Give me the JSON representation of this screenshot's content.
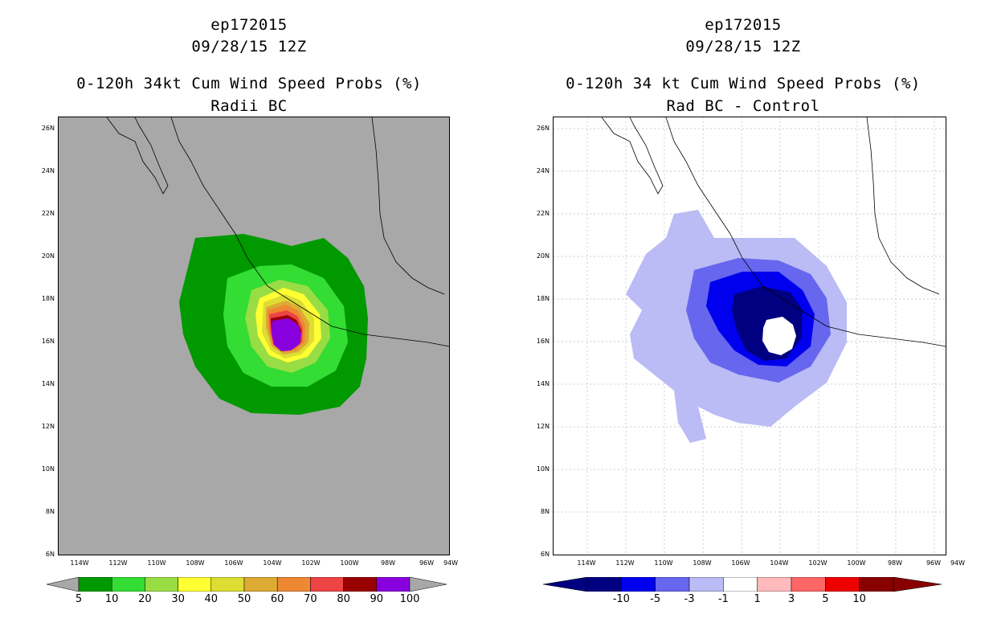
{
  "left_panel": {
    "title_storm": "ep172015",
    "title_date": "09/28/15 12Z",
    "title_product": "0-120h 34kt Cum Wind Speed Probs (%)",
    "title_sub": "Radii BC",
    "background_color": "#a8a8a8",
    "colorbar": {
      "colors": [
        "#009900",
        "#33dd33",
        "#99dd44",
        "#ffff33",
        "#dddd33",
        "#ddaa33",
        "#ee8833",
        "#ee4444",
        "#990000",
        "#8800dd"
      ],
      "labels": [
        "5",
        "10",
        "20",
        "30",
        "40",
        "50",
        "60",
        "70",
        "80",
        "90",
        "100"
      ]
    }
  },
  "right_panel": {
    "title_storm": "ep172015",
    "title_date": "09/28/15 12Z",
    "title_product": "0-120h 34 kt Cum Wind Speed Probs (%)",
    "title_sub": "Rad BC - Control",
    "background_color": "#ffffff",
    "colorbar": {
      "colors": [
        "#000080",
        "#0000ee",
        "#6666ee",
        "#bbbbf5",
        "#ffffff",
        "#ffbbbb",
        "#ff6666",
        "#ee0000",
        "#880000"
      ],
      "labels": [
        "-10",
        "-5",
        "-3",
        "-1",
        "1",
        "3",
        "5",
        "10"
      ]
    }
  },
  "axes": {
    "lat_labels": [
      "26N",
      "24N",
      "22N",
      "20N",
      "18N",
      "16N",
      "14N",
      "12N",
      "10N",
      "8N",
      "6N"
    ],
    "lon_labels": [
      "114W",
      "112W",
      "110W",
      "108W",
      "106W",
      "104W",
      "102W",
      "100W",
      "98W",
      "96W",
      "94W"
    ]
  }
}
